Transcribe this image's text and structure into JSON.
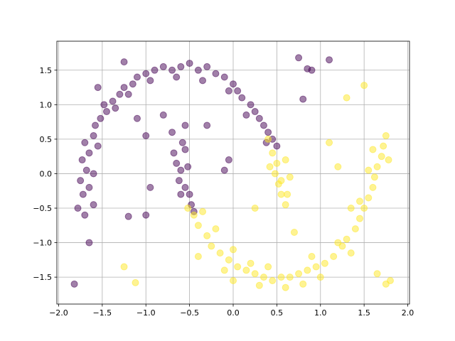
{
  "chart_data": {
    "type": "scatter",
    "grid": true,
    "alpha": 0.5,
    "xlim": [
      -2.02,
      2.02
    ],
    "ylim": [
      -1.89,
      1.92
    ],
    "xticks": [
      {
        "value": -2.0,
        "label": "−2.0"
      },
      {
        "value": -1.5,
        "label": "−1.5"
      },
      {
        "value": -1.0,
        "label": "−1.0"
      },
      {
        "value": -0.5,
        "label": "−0.5"
      },
      {
        "value": 0,
        "label": "0.0"
      },
      0.5,
      {
        "value": 1,
        "label": "1.0"
      },
      1.5,
      {
        "value": 2,
        "label": "2.0"
      }
    ],
    "yticks": [
      {
        "value": -1.5,
        "label": "−1.5"
      },
      {
        "value": -1.0,
        "label": "−1.0"
      },
      {
        "value": -0.5,
        "label": "−0.5"
      },
      {
        "value": 0,
        "label": "0.0"
      },
      0.5,
      {
        "value": 1,
        "label": "1.0"
      },
      1.5
    ],
    "series": [
      {
        "color": "#440154",
        "x": [
          -1.78,
          -1.72,
          -1.75,
          -1.68,
          -1.73,
          -1.65,
          -1.7,
          -1.6,
          -1.58,
          -1.52,
          -1.45,
          -1.48,
          -1.38,
          -1.3,
          -1.25,
          -1.15,
          -1.1,
          -1.0,
          -0.9,
          -0.8,
          -0.7,
          -0.6,
          -0.5,
          -0.4,
          -0.3,
          -0.2,
          -0.1,
          0.0,
          0.05,
          0.1,
          0.2,
          0.25,
          0.3,
          0.35,
          0.4,
          0.45,
          0.5,
          -1.65,
          -1.6,
          -1.55,
          -1.35,
          -1.2,
          -0.95,
          -0.65,
          -0.35,
          -0.05,
          0.15,
          0.38,
          -1.7,
          -1.6,
          -0.68,
          -0.65,
          -0.6,
          -0.62,
          -0.55,
          -0.5,
          -0.48,
          -0.55,
          -0.58,
          -0.6,
          -0.52,
          -0.45,
          -1.82,
          -1.65,
          -1.2,
          -1.0,
          -0.95,
          -1.25,
          -1.55,
          -1.0,
          -1.1,
          -0.8,
          -0.55,
          -0.1,
          -0.05,
          0.75,
          0.85,
          0.9,
          0.8,
          1.1,
          -0.3,
          -0.7
        ],
        "y": [
          -0.5,
          -0.3,
          -0.1,
          0.05,
          0.2,
          0.3,
          0.45,
          0.55,
          0.7,
          0.8,
          0.9,
          1.0,
          1.05,
          1.15,
          1.25,
          1.3,
          1.4,
          1.45,
          1.5,
          1.55,
          1.5,
          1.55,
          1.6,
          1.5,
          1.55,
          1.45,
          1.4,
          1.3,
          1.2,
          1.1,
          1.0,
          0.9,
          0.8,
          0.7,
          0.6,
          0.5,
          0.4,
          -0.2,
          0.0,
          0.4,
          0.95,
          1.15,
          1.35,
          1.4,
          1.35,
          1.2,
          0.85,
          0.45,
          -0.6,
          -0.45,
          0.3,
          0.15,
          0.05,
          -0.1,
          -0.2,
          -0.3,
          -0.45,
          0.35,
          0.45,
          -0.3,
          0.1,
          -0.55,
          -1.6,
          -1.0,
          -0.62,
          -0.6,
          -0.2,
          1.62,
          1.25,
          0.55,
          0.8,
          0.85,
          0.7,
          0.05,
          0.2,
          1.68,
          1.52,
          1.5,
          1.08,
          1.65,
          0.7,
          0.6
        ]
      },
      {
        "color": "#fde725",
        "x": [
          -0.52,
          -0.45,
          -0.4,
          -0.3,
          -0.25,
          -0.15,
          -0.05,
          0.05,
          0.15,
          0.25,
          0.35,
          0.45,
          0.55,
          0.65,
          0.75,
          0.85,
          0.95,
          1.05,
          1.15,
          1.25,
          1.3,
          1.4,
          1.45,
          1.5,
          1.55,
          1.6,
          1.62,
          1.65,
          1.7,
          1.72,
          1.75,
          -0.35,
          -0.2,
          0.0,
          0.2,
          0.4,
          0.6,
          0.8,
          1.0,
          1.2,
          1.35,
          1.45,
          1.6,
          1.78,
          1.55,
          -0.1,
          0.3,
          0.9,
          0.4,
          0.45,
          0.5,
          0.48,
          0.52,
          0.55,
          0.6,
          0.62,
          0.6,
          0.55,
          0.42,
          0.65,
          -1.25,
          -1.12,
          -0.4,
          0.25,
          0.7,
          1.35,
          1.3,
          1.5,
          1.1,
          1.2,
          1.65,
          1.8,
          1.75,
          0.0
        ],
        "y": [
          -0.5,
          -0.6,
          -0.75,
          -0.9,
          -1.05,
          -1.15,
          -1.25,
          -1.35,
          -1.4,
          -1.45,
          -1.5,
          -1.55,
          -1.5,
          -1.5,
          -1.45,
          -1.4,
          -1.35,
          -1.3,
          -1.2,
          -1.05,
          -0.95,
          -0.8,
          -0.65,
          -0.5,
          -0.35,
          -0.2,
          -0.05,
          0.1,
          0.25,
          0.4,
          0.55,
          -0.55,
          -0.8,
          -1.1,
          -1.3,
          -1.35,
          -1.65,
          -1.6,
          -1.5,
          -1.0,
          -1.15,
          -0.4,
          0.35,
          0.2,
          0.05,
          -1.4,
          -1.62,
          -1.2,
          0.5,
          0.3,
          0.15,
          0.0,
          -0.15,
          -0.3,
          -0.45,
          -0.3,
          0.2,
          -0.1,
          0.1,
          -0.05,
          -1.35,
          -1.58,
          -1.2,
          -0.5,
          -0.85,
          -0.5,
          1.1,
          1.28,
          0.45,
          0.1,
          -1.45,
          -1.55,
          -1.6,
          -1.55
        ]
      }
    ]
  }
}
